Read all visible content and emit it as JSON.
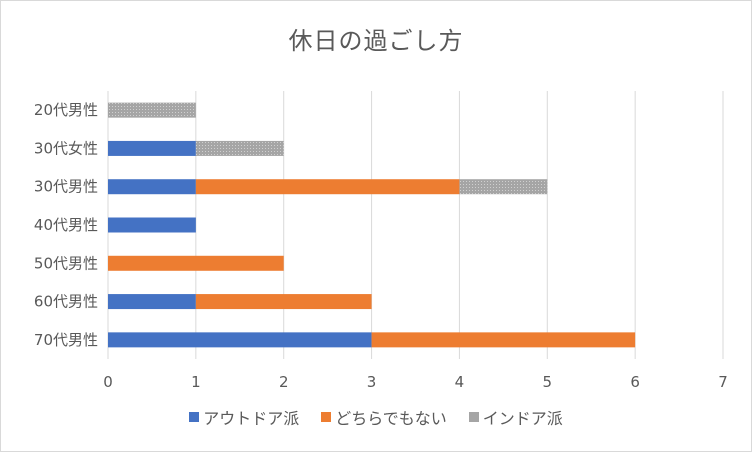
{
  "chart_data": {
    "type": "bar",
    "orientation": "horizontal",
    "stacked": true,
    "title": "休日の過ごし方",
    "categories": [
      "20代男性",
      "30代女性",
      "30代男性",
      "40代男性",
      "50代男性",
      "60代男性",
      "70代男性"
    ],
    "series": [
      {
        "name": "アウトドア派",
        "color": "#4472c4",
        "values": [
          0,
          1,
          1,
          1,
          0,
          1,
          3
        ]
      },
      {
        "name": "どちらでもない",
        "color": "#ed7d31",
        "values": [
          0,
          0,
          3,
          0,
          2,
          2,
          3
        ]
      },
      {
        "name": "インドア派",
        "color": "#a5a5a5",
        "values": [
          1,
          1,
          1,
          0,
          0,
          0,
          0
        ]
      }
    ],
    "xlim": [
      0,
      7
    ],
    "xticks": [
      "0",
      "1",
      "2",
      "3",
      "4",
      "5",
      "6",
      "7"
    ],
    "grid": "vertical",
    "legend_position": "bottom"
  }
}
